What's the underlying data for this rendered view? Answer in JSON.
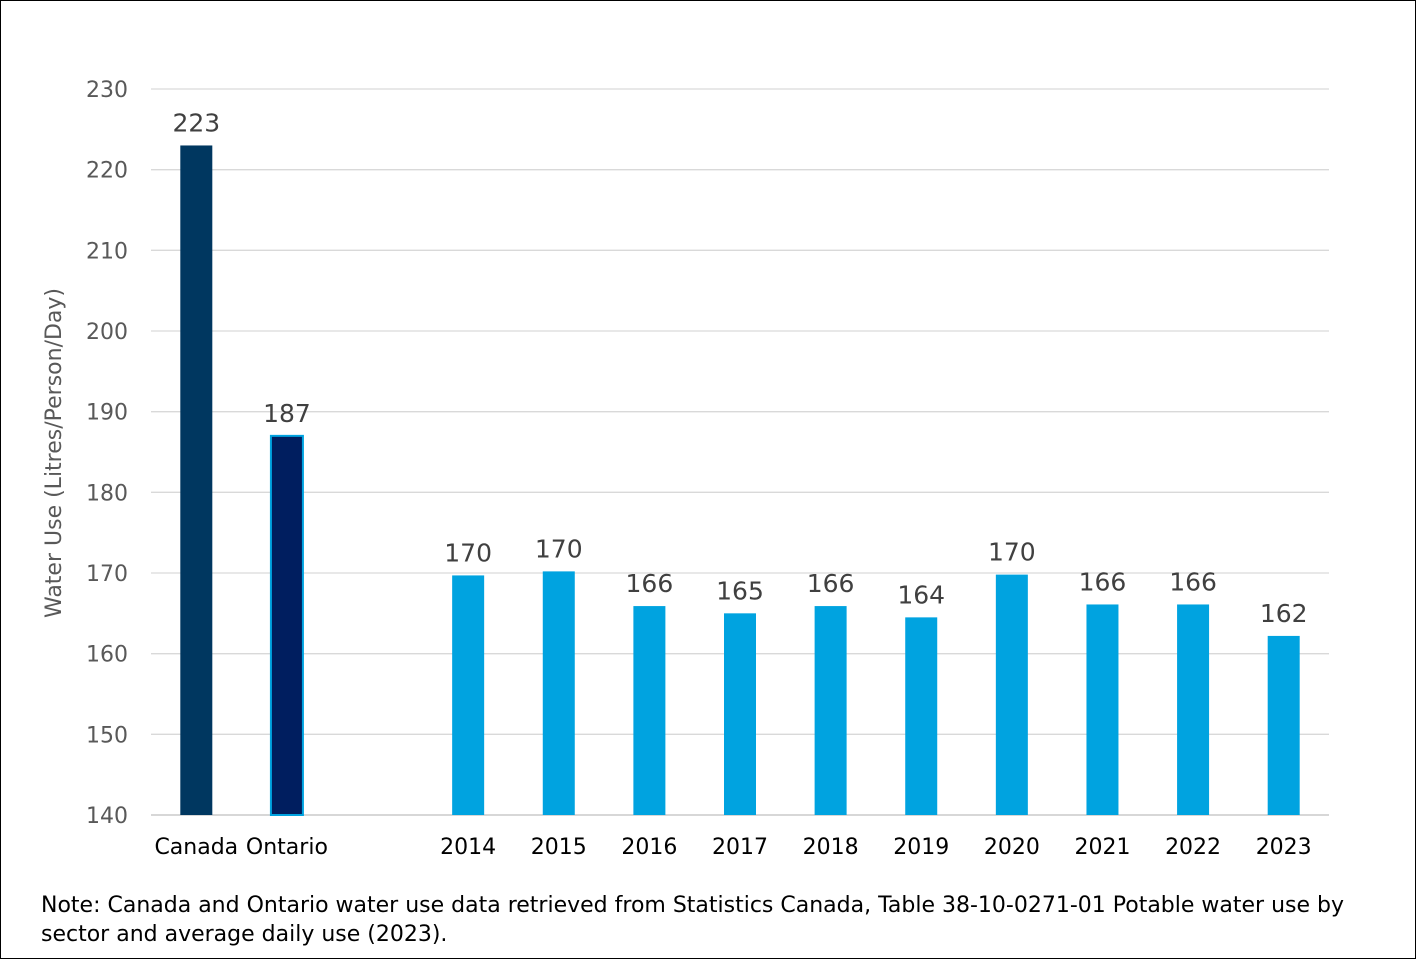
{
  "chart_data": {
    "type": "bar",
    "categories": [
      "Canada",
      "Ontario",
      "",
      "2014",
      "2015",
      "2016",
      "2017",
      "2018",
      "2019",
      "2020",
      "2021",
      "2022",
      "2023"
    ],
    "values": [
      223,
      187,
      null,
      170,
      170,
      166,
      165,
      166,
      164,
      170,
      166,
      166,
      162
    ],
    "exact_values": [
      223,
      187,
      null,
      169.7,
      170.2,
      165.9,
      165.0,
      165.9,
      164.5,
      169.8,
      166.1,
      166.1,
      162.2
    ],
    "data_labels": [
      "223",
      "187",
      "",
      "170",
      "170",
      "166",
      "165",
      "166",
      "164",
      "170",
      "166",
      "166",
      "162"
    ],
    "bar_colors": [
      "#003760",
      "#001e5f",
      null,
      "#00a3e0",
      "#00a3e0",
      "#00a3e0",
      "#00a3e0",
      "#00a3e0",
      "#00a3e0",
      "#00a3e0",
      "#00a3e0",
      "#00a3e0",
      "#00a3e0"
    ],
    "ylabel": "Water Use (Litres/Person/Day)",
    "xlabel": "",
    "ylim": [
      140,
      230
    ],
    "yticks": [
      140,
      150,
      160,
      170,
      180,
      190,
      200,
      210,
      220,
      230
    ],
    "grid": true,
    "gridline_color": "#d9d9d9",
    "legend": "none"
  },
  "note": "Note: Canada and Ontario water use data retrieved from Statistics Canada, Table 38-10-0271-01 Potable water use by sector and average daily use (2023)."
}
